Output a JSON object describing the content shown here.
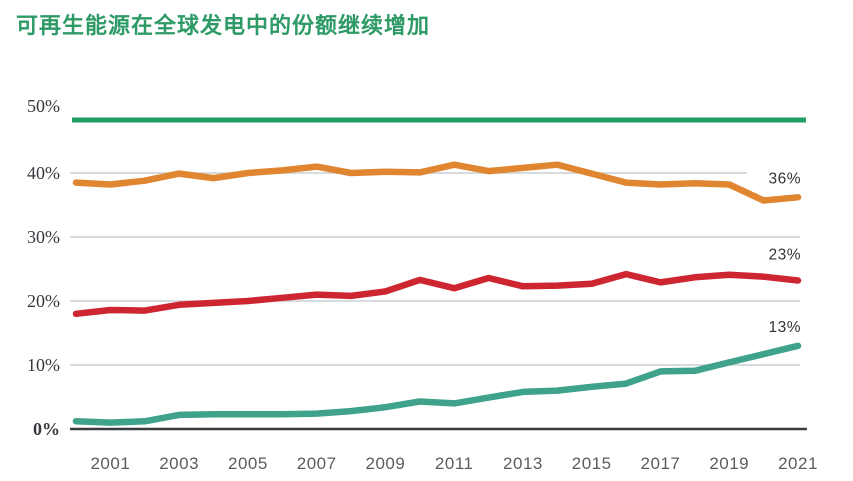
{
  "colors": {
    "title_green": "#2E9A66",
    "topline_green": "#1F9E63",
    "gridline": "#CBCFD2",
    "axis_line": "#3A3D40",
    "y_tick_text": "#35393D",
    "x_tick_text": "#595D61",
    "end_label_text": "#313438",
    "background": "#FFFFFF"
  },
  "chart_data": {
    "type": "line",
    "title": "可再生能源在全球发电中的份额继续增加",
    "x": [
      2000,
      2001,
      2002,
      2003,
      2004,
      2005,
      2006,
      2007,
      2008,
      2009,
      2010,
      2011,
      2012,
      2013,
      2014,
      2015,
      2016,
      2017,
      2018,
      2019,
      2020,
      2021
    ],
    "x_tick_labels": [
      "2001",
      "2003",
      "2005",
      "2007",
      "2009",
      "2011",
      "2013",
      "2015",
      "2017",
      "2019",
      "2021"
    ],
    "y_tick_labels": [
      "0%",
      "10%",
      "20%",
      "30%",
      "40%",
      "50%"
    ],
    "ylim": [
      0,
      50
    ],
    "grid": "horizontal",
    "legend": "none",
    "series": [
      {
        "key": "orange",
        "color": "#E08530",
        "end_label": "36%",
        "values": [
          38.5,
          38.2,
          38.8,
          39.9,
          39.2,
          40.0,
          40.4,
          41.0,
          40.0,
          40.2,
          40.1,
          41.3,
          40.3,
          40.8,
          41.3,
          39.9,
          38.5,
          38.2,
          38.4,
          38.2,
          35.7,
          36.2
        ]
      },
      {
        "key": "red",
        "color": "#CE2630",
        "end_label": "23%",
        "values": [
          18.0,
          18.6,
          18.5,
          19.4,
          19.7,
          20.0,
          20.5,
          21.0,
          20.8,
          21.5,
          23.3,
          22.0,
          23.6,
          22.3,
          22.4,
          22.7,
          24.2,
          22.9,
          23.7,
          24.1,
          23.8,
          23.2
        ]
      },
      {
        "key": "teal",
        "color": "#3FA28A",
        "end_label": "13%",
        "values": [
          1.2,
          1.0,
          1.2,
          2.2,
          2.3,
          2.3,
          2.3,
          2.4,
          2.8,
          3.4,
          4.3,
          4.0,
          4.9,
          5.8,
          6.0,
          6.6,
          7.1,
          9.0,
          9.1,
          10.4,
          11.7,
          13.0
        ]
      }
    ]
  }
}
